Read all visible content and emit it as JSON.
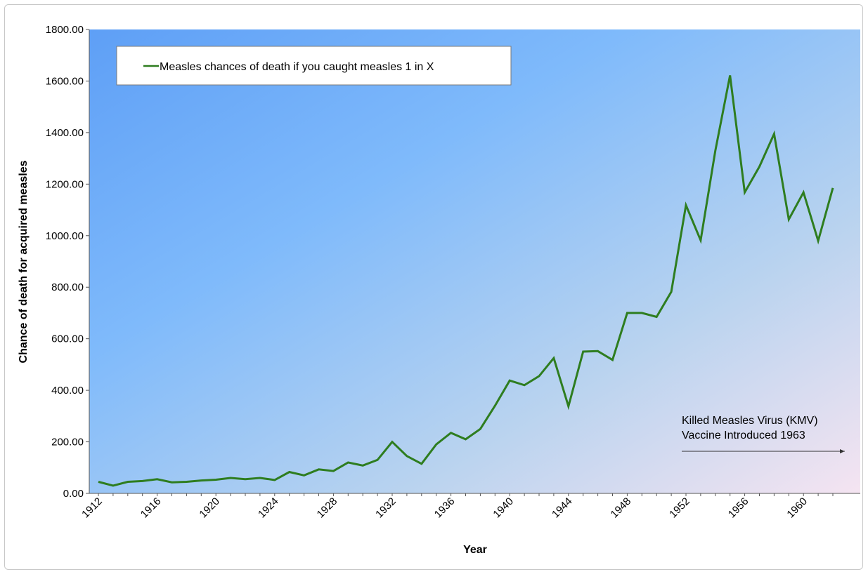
{
  "chart_data": {
    "type": "line",
    "title": "",
    "xlabel": "Year",
    "ylabel": "Chance of death for acquired measles",
    "xlim": [
      1912,
      1962
    ],
    "ylim": [
      0,
      1800
    ],
    "y_ticks": [
      "0.00",
      "200.00",
      "400.00",
      "600.00",
      "800.00",
      "1000.00",
      "1200.00",
      "1400.00",
      "1600.00",
      "1800.00"
    ],
    "x_ticks": [
      "1912",
      "1916",
      "1920",
      "1924",
      "1928",
      "1932",
      "1936",
      "1940",
      "1944",
      "1948",
      "1952",
      "1956",
      "1960"
    ],
    "grid": false,
    "legend": {
      "position": "top-left",
      "entries": [
        {
          "label": "Measles chances of death if you caught measles 1 in X",
          "color": "#2e7d1f"
        }
      ]
    },
    "series": [
      {
        "name": "Measles chances of death if you caught measles 1 in X",
        "color": "#2e7d1f",
        "x": [
          1912,
          1913,
          1914,
          1915,
          1916,
          1917,
          1918,
          1919,
          1920,
          1921,
          1922,
          1923,
          1924,
          1925,
          1926,
          1927,
          1928,
          1929,
          1930,
          1931,
          1932,
          1933,
          1934,
          1935,
          1936,
          1937,
          1938,
          1939,
          1940,
          1941,
          1942,
          1943,
          1944,
          1945,
          1946,
          1947,
          1948,
          1949,
          1950,
          1951,
          1952,
          1953,
          1954,
          1955,
          1956,
          1957,
          1958,
          1959,
          1960,
          1961,
          1962
        ],
        "values": [
          45,
          30,
          45,
          48,
          55,
          43,
          45,
          50,
          53,
          60,
          55,
          60,
          52,
          83,
          70,
          93,
          87,
          120,
          108,
          130,
          200,
          145,
          115,
          190,
          235,
          210,
          250,
          340,
          438,
          420,
          455,
          525,
          338,
          550,
          552,
          518,
          700,
          700,
          685,
          782,
          1118,
          982,
          1330,
          1622,
          1168,
          1268,
          1395,
          1063,
          1168,
          980,
          1185
        ]
      }
    ],
    "annotations": [
      {
        "line1": "Killed Measles Virus (KMV)",
        "line2": "Vaccine Introduced 1963"
      }
    ],
    "colors": {
      "plot_bg_top_left": "#5e9ff6",
      "plot_bg_middle": "#84c0fb",
      "plot_bg_bottom_right": "#f3e5f1",
      "line": "#2e7d1f"
    }
  }
}
